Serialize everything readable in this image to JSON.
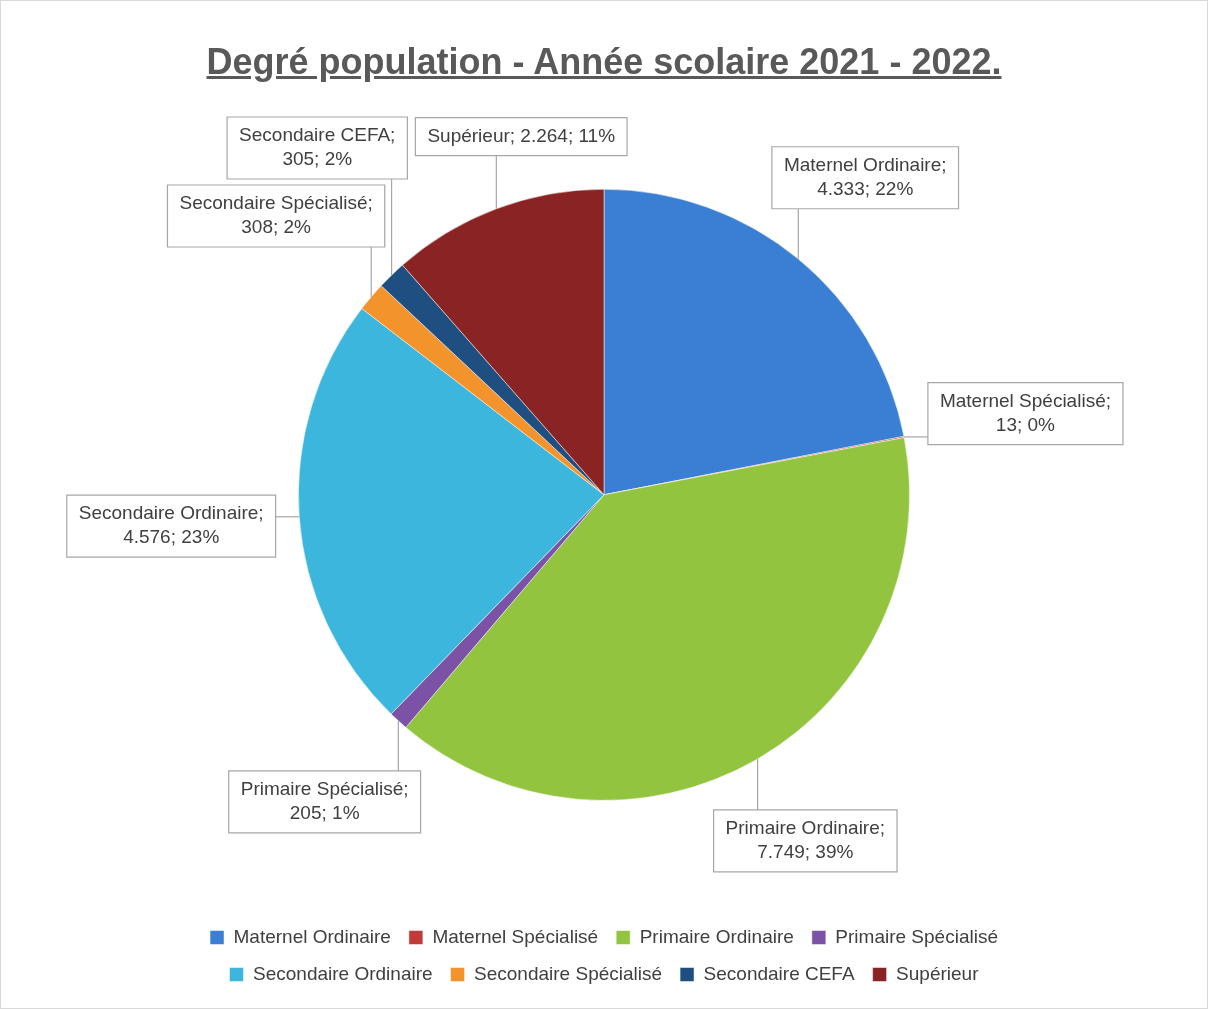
{
  "chart_data": {
    "type": "pie",
    "title": "Degré population - Année scolaire 2021 - 2022.",
    "categories": [
      "Maternel Ordinaire",
      "Maternel Spécialisé",
      "Primaire Ordinaire",
      "Primaire Spécialisé",
      "Secondaire Ordinaire",
      "Secondaire Spécialisé",
      "Secondaire CEFA",
      "Supérieur"
    ],
    "values": [
      4333,
      13,
      7749,
      205,
      4576,
      308,
      305,
      2264
    ],
    "value_labels": [
      "Maternel Ordinaire; 4.333; 22%",
      "Maternel Spécialisé; 13; 0%",
      "Primaire Ordinaire; 7.749; 39%",
      "Primaire Spécialisé; 205; 1%",
      "Secondaire Ordinaire; 4.576; 23%",
      "Secondaire Spécialisé; 308; 2%",
      "Secondaire CEFA; 305; 2%",
      "Supérieur; 2.264; 11%"
    ],
    "colors": [
      "#3b7fd4",
      "#c23b3b",
      "#93c440",
      "#7b52a6",
      "#3cb6dc",
      "#f3932b",
      "#1f4f80",
      "#8a2424"
    ],
    "legend": "bottom"
  }
}
